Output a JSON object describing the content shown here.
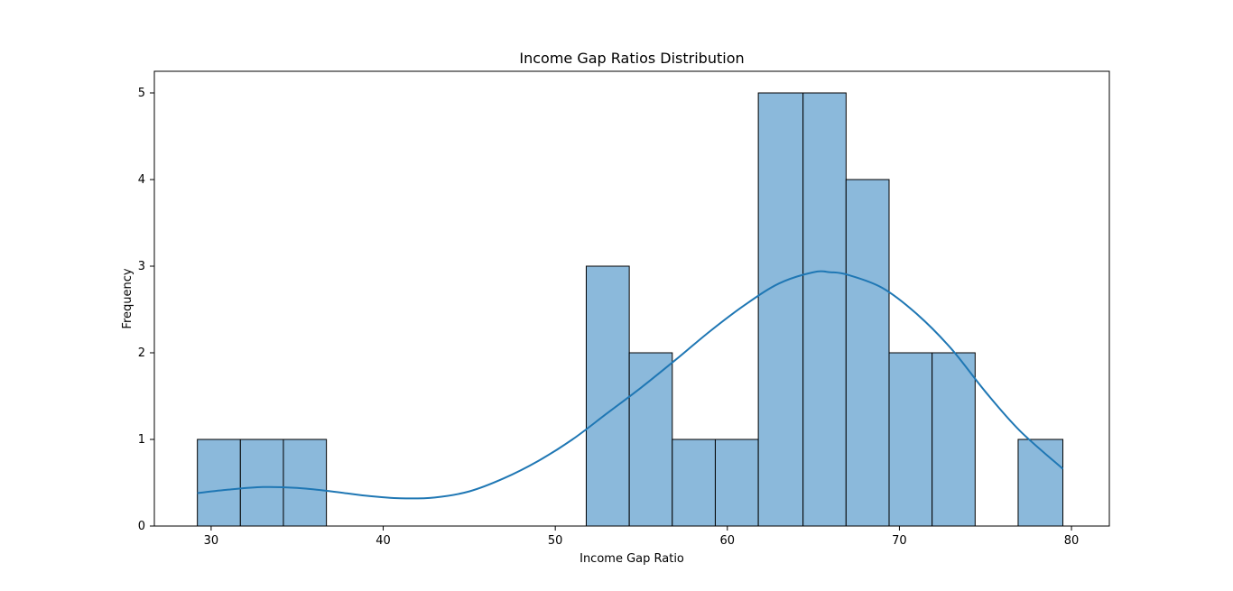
{
  "chart_data": {
    "type": "bar",
    "subtype": "histogram",
    "title": "Income Gap Ratios Distribution",
    "xlabel": "Income Gap Ratio",
    "ylabel": "Frequency",
    "xlim": [
      26.7,
      82.2
    ],
    "ylim": [
      0,
      5.25
    ],
    "x_ticks": [
      30,
      40,
      50,
      60,
      70,
      80
    ],
    "y_ticks": [
      0,
      1,
      2,
      3,
      4,
      5
    ],
    "grid": false,
    "bar_color": "#8bb9db",
    "kde_color": "#1f77b4",
    "bins": [
      {
        "start": 29.2,
        "end": 31.7,
        "count": 1
      },
      {
        "start": 31.7,
        "end": 34.2,
        "count": 1
      },
      {
        "start": 34.2,
        "end": 36.7,
        "count": 1
      },
      {
        "start": 36.7,
        "end": 39.2,
        "count": 0
      },
      {
        "start": 39.2,
        "end": 41.7,
        "count": 0
      },
      {
        "start": 41.7,
        "end": 44.2,
        "count": 0
      },
      {
        "start": 44.2,
        "end": 46.7,
        "count": 0
      },
      {
        "start": 46.7,
        "end": 49.3,
        "count": 0
      },
      {
        "start": 49.3,
        "end": 51.8,
        "count": 0
      },
      {
        "start": 51.8,
        "end": 54.3,
        "count": 3
      },
      {
        "start": 54.3,
        "end": 56.8,
        "count": 2
      },
      {
        "start": 56.8,
        "end": 59.3,
        "count": 1
      },
      {
        "start": 59.3,
        "end": 61.8,
        "count": 1
      },
      {
        "start": 61.8,
        "end": 64.4,
        "count": 5
      },
      {
        "start": 64.4,
        "end": 66.9,
        "count": 5
      },
      {
        "start": 66.9,
        "end": 69.4,
        "count": 4
      },
      {
        "start": 69.4,
        "end": 71.9,
        "count": 2
      },
      {
        "start": 71.9,
        "end": 74.4,
        "count": 2
      },
      {
        "start": 74.4,
        "end": 76.9,
        "count": 0
      },
      {
        "start": 76.9,
        "end": 79.5,
        "count": 1
      }
    ],
    "kde": {
      "x": [
        29.2,
        31,
        33,
        35,
        37,
        39,
        41,
        43,
        45,
        47,
        49,
        51,
        53,
        55,
        57,
        59,
        61,
        63,
        65,
        66,
        67,
        69,
        71,
        73,
        75,
        77,
        79.5
      ],
      "y": [
        0.38,
        0.42,
        0.45,
        0.44,
        0.4,
        0.35,
        0.32,
        0.33,
        0.4,
        0.55,
        0.75,
        1.0,
        1.3,
        1.6,
        1.92,
        2.25,
        2.55,
        2.8,
        2.93,
        2.93,
        2.9,
        2.75,
        2.45,
        2.05,
        1.55,
        1.1,
        0.66
      ]
    }
  }
}
